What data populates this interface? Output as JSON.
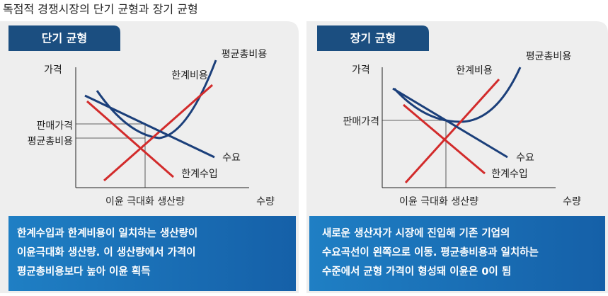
{
  "header": {
    "title": "독점적 경쟁시장의 단기 균형과 장기 균형"
  },
  "panels": [
    {
      "tab": "단기 균형",
      "y_axis_label": "가격",
      "x_axis_label": "수량",
      "price_label": "판매가격",
      "cost_label": "평균총비용",
      "quantity_label": "이윤 극대화 생산량",
      "curves": {
        "atc": "평균총비용",
        "mc": "한계비용",
        "demand": "수요",
        "mr": "한계수입"
      },
      "caption": [
        "한계수입과 한계비용이 일치하는 생산량이",
        "이윤극대화 생산량. 이 생산량에서 가격이",
        "평균총비용보다 높아 이윤 획득"
      ]
    },
    {
      "tab": "장기 균형",
      "y_axis_label": "가격",
      "x_axis_label": "수량",
      "price_label": "판매가격",
      "quantity_label": "이윤 극대화 생산량",
      "curves": {
        "atc": "평균총비용",
        "mc": "한계비용",
        "demand": "수요",
        "mr": "한계수입"
      },
      "caption": [
        "새로운 생산자가 시장에 진입해 기존 기업의",
        "수요곡선이 왼쪽으로 이동.  평균총비용과 일치하는",
        "수준에서 균형 가격이 형성돼 이윤은 0이 됨"
      ]
    }
  ]
}
